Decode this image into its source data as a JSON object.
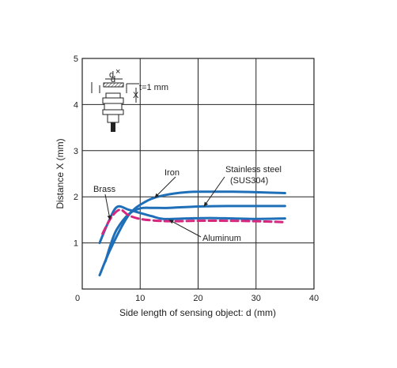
{
  "chart_data": {
    "type": "line",
    "xlabel": "Side length of sensing object: d (mm)",
    "ylabel": "Distance X (mm)",
    "xlim": [
      0,
      40
    ],
    "ylim": [
      0,
      5
    ],
    "xticks": [
      0,
      10,
      20,
      30,
      40
    ],
    "yticks": [
      1,
      2,
      3,
      4,
      5
    ],
    "grid": true,
    "series": [
      {
        "name": "Iron",
        "color": "#1f6fb8",
        "dash": "solid",
        "x": [
          3,
          5,
          8,
          11,
          14,
          18,
          22,
          26,
          30,
          35
        ],
        "y": [
          0.3,
          0.9,
          1.6,
          1.9,
          2.03,
          2.1,
          2.11,
          2.11,
          2.1,
          2.08
        ]
      },
      {
        "name": "Stainless steel\n(SUS304)",
        "color": "#1f6fb8",
        "dash": "solid",
        "x": [
          4,
          5,
          6,
          8,
          10,
          12,
          15,
          20,
          25,
          30,
          35
        ],
        "y": [
          0.6,
          1.0,
          1.3,
          1.62,
          1.75,
          1.76,
          1.76,
          1.79,
          1.8,
          1.8,
          1.8
        ]
      },
      {
        "name": "Brass",
        "color": "#1f6fb8",
        "dash": "solid",
        "x": [
          3,
          4.5,
          6,
          8,
          10,
          12,
          14,
          18,
          22,
          26,
          30,
          35
        ],
        "y": [
          1.0,
          1.45,
          1.78,
          1.72,
          1.65,
          1.58,
          1.52,
          1.53,
          1.54,
          1.53,
          1.52,
          1.53
        ]
      },
      {
        "name": "Aluminum",
        "color": "#d6267e",
        "dash": "dashed",
        "x": [
          3.5,
          5,
          6.5,
          8,
          10,
          13,
          16,
          20,
          25,
          30,
          35
        ],
        "y": [
          1.2,
          1.55,
          1.72,
          1.6,
          1.52,
          1.48,
          1.47,
          1.48,
          1.48,
          1.47,
          1.45
        ]
      }
    ],
    "annotations": [
      {
        "text": "Iron",
        "target_series": "Iron"
      },
      {
        "text": "Stainless steel",
        "text2": "(SUS304)",
        "target_series": "Stainless steel\n(SUS304)"
      },
      {
        "text": "Brass",
        "target_series": "Brass"
      },
      {
        "text": "Aluminum",
        "target_series": "Aluminum"
      }
    ],
    "inset": {
      "labels": {
        "d": "d",
        "x": "X",
        "t": "t=1 mm"
      }
    }
  }
}
